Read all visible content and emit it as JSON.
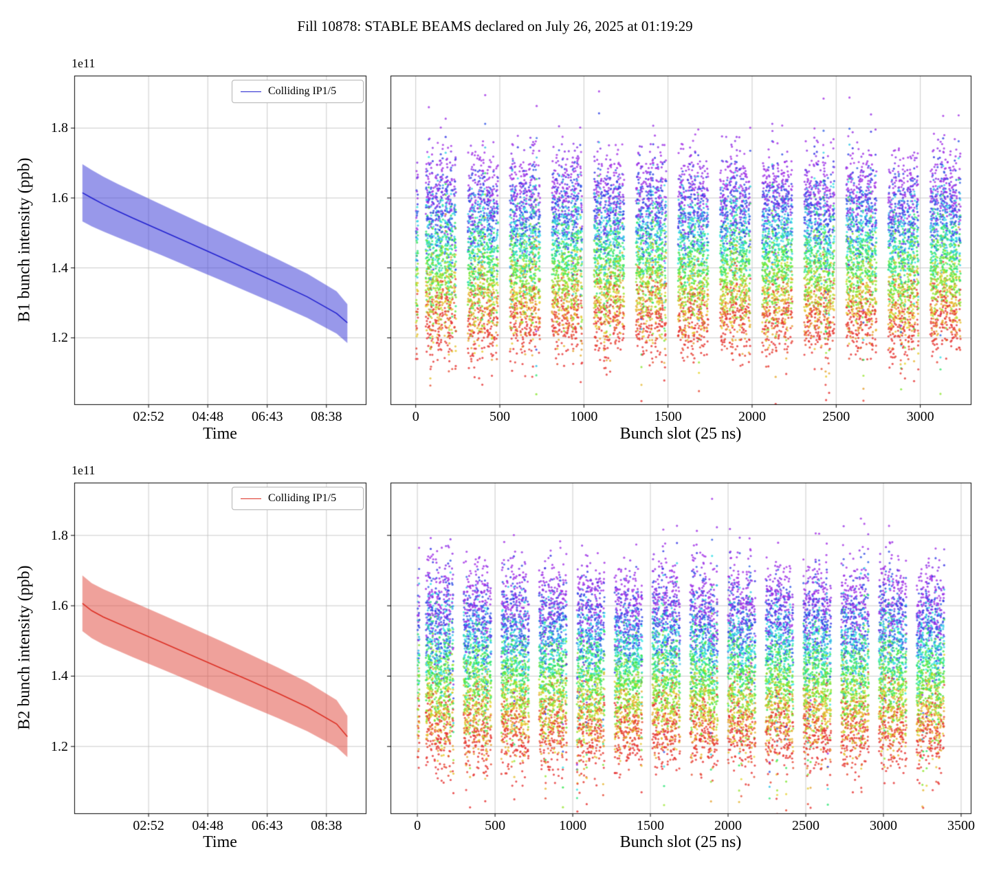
{
  "figure": {
    "title": "Fill 10878: STABLE BEAMS declared on July 26, 2025 at 01:19:29"
  },
  "chart_data": [
    {
      "id": "b1_time",
      "type": "line",
      "xlabel": "Time",
      "ylabel": "B1 bunch intensity (ppb)",
      "y_offset_label": "1e11",
      "legend": {
        "label": "Colliding IP1/5",
        "position": "upper right"
      },
      "line_color": "#2121cf",
      "band_color_rgb": [
        67,
        67,
        216
      ],
      "band_alpha": 0.55,
      "grid": true,
      "xlim": [
        0,
        1
      ],
      "ylim": [
        1.01,
        1.95
      ],
      "xticks": [
        {
          "v": 0.255,
          "label": "02:52"
        },
        {
          "v": 0.458,
          "label": "04:48"
        },
        {
          "v": 0.662,
          "label": "06:43"
        },
        {
          "v": 0.865,
          "label": "08:38"
        }
      ],
      "yticks": [
        {
          "v": 1.2,
          "label": "1.2"
        },
        {
          "v": 1.4,
          "label": "1.4"
        },
        {
          "v": 1.6,
          "label": "1.6"
        },
        {
          "v": 1.8,
          "label": "1.8"
        }
      ],
      "show_ytick_labels": true,
      "series": {
        "x": [
          0.028,
          0.06,
          0.1,
          0.15,
          0.2,
          0.3,
          0.4,
          0.5,
          0.6,
          0.7,
          0.8,
          0.9,
          0.937
        ],
        "y": [
          1.615,
          1.6,
          1.582,
          1.562,
          1.543,
          1.506,
          1.469,
          1.432,
          1.394,
          1.356,
          1.317,
          1.27,
          1.243
        ],
        "hi": [
          1.697,
          1.68,
          1.661,
          1.64,
          1.62,
          1.581,
          1.542,
          1.503,
          1.464,
          1.424,
          1.383,
          1.333,
          1.296
        ],
        "lo": [
          1.533,
          1.519,
          1.504,
          1.487,
          1.47,
          1.436,
          1.401,
          1.366,
          1.33,
          1.294,
          1.257,
          1.212,
          1.185
        ]
      }
    },
    {
      "id": "b1_scatter",
      "type": "scatter",
      "xlabel": "Bunch slot (25 ns)",
      "ylabel": "",
      "grid": true,
      "xlim": [
        -150,
        3300
      ],
      "ylim": [
        1.01,
        1.95
      ],
      "xticks": [
        {
          "v": 0,
          "label": "0"
        },
        {
          "v": 500,
          "label": "500"
        },
        {
          "v": 1000,
          "label": "1000"
        },
        {
          "v": 1500,
          "label": "1500"
        },
        {
          "v": 2000,
          "label": "2000"
        },
        {
          "v": 2500,
          "label": "2500"
        },
        {
          "v": 3000,
          "label": "3000"
        }
      ],
      "yticks": [
        {
          "v": 1.2,
          "label": "1.2"
        },
        {
          "v": 1.4,
          "label": "1.4"
        },
        {
          "v": 1.6,
          "label": "1.6"
        },
        {
          "v": 1.8,
          "label": "1.8"
        }
      ],
      "show_ytick_labels": false,
      "colormap": "rainbow by time: purple=early/high intensity, red=late/low intensity",
      "marker_radius_px": 1.6,
      "marker_alpha": 0.8,
      "gen": {
        "seed": 20257,
        "initial_cluster": {
          "first_slot": 2,
          "count": 12
        },
        "trains": {
          "count": 13,
          "first_slot": 60,
          "length": 180,
          "pitch": 250,
          "on": 48,
          "off": 8
        },
        "intensity": {
          "start_mean": 1.62,
          "start_std": 0.068,
          "decay_ratio_mean": 0.768,
          "decay_ratio_std": 0.018,
          "time_samples": 7,
          "y_noise": 0.011,
          "high_outlier_prob": 0.006,
          "high_outlier_mean": 1.8,
          "high_outlier_std": 0.05,
          "low_outlier_prob": 0.012,
          "low_outlier_mean": 1.4,
          "low_outlier_std": 0.1
        }
      }
    },
    {
      "id": "b2_time",
      "type": "line",
      "xlabel": "Time",
      "ylabel": "B2 bunch intensity (ppb)",
      "y_offset_label": "1e11",
      "legend": {
        "label": "Colliding IP1/5",
        "position": "upper right"
      },
      "line_color": "#dc2f23",
      "band_color_rgb": [
        224,
        68,
        56
      ],
      "band_alpha": 0.5,
      "grid": true,
      "xlim": [
        0,
        1
      ],
      "ylim": [
        1.01,
        1.95
      ],
      "xticks": [
        {
          "v": 0.255,
          "label": "02:52"
        },
        {
          "v": 0.458,
          "label": "04:48"
        },
        {
          "v": 0.662,
          "label": "06:43"
        },
        {
          "v": 0.865,
          "label": "08:38"
        }
      ],
      "yticks": [
        {
          "v": 1.2,
          "label": "1.2"
        },
        {
          "v": 1.4,
          "label": "1.4"
        },
        {
          "v": 1.6,
          "label": "1.6"
        },
        {
          "v": 1.8,
          "label": "1.8"
        }
      ],
      "show_ytick_labels": true,
      "series": {
        "x": [
          0.028,
          0.06,
          0.1,
          0.15,
          0.2,
          0.3,
          0.4,
          0.5,
          0.6,
          0.7,
          0.8,
          0.9,
          0.937
        ],
        "y": [
          1.607,
          1.586,
          1.568,
          1.55,
          1.532,
          1.496,
          1.46,
          1.424,
          1.388,
          1.351,
          1.312,
          1.264,
          1.228
        ],
        "hi": [
          1.686,
          1.664,
          1.647,
          1.629,
          1.611,
          1.575,
          1.538,
          1.501,
          1.463,
          1.424,
          1.383,
          1.332,
          1.287
        ],
        "lo": [
          1.528,
          1.508,
          1.49,
          1.472,
          1.454,
          1.42,
          1.385,
          1.35,
          1.315,
          1.28,
          1.243,
          1.198,
          1.17
        ]
      }
    },
    {
      "id": "b2_scatter",
      "type": "scatter",
      "xlabel": "Bunch slot (25 ns)",
      "ylabel": "",
      "grid": true,
      "xlim": [
        -173,
        3562
      ],
      "ylim": [
        1.01,
        1.95
      ],
      "xticks": [
        {
          "v": 0,
          "label": "0"
        },
        {
          "v": 500,
          "label": "500"
        },
        {
          "v": 1000,
          "label": "1000"
        },
        {
          "v": 1500,
          "label": "1500"
        },
        {
          "v": 2000,
          "label": "2000"
        },
        {
          "v": 2500,
          "label": "2500"
        },
        {
          "v": 3000,
          "label": "3000"
        },
        {
          "v": 3500,
          "label": "3500"
        }
      ],
      "yticks": [
        {
          "v": 1.2,
          "label": "1.2"
        },
        {
          "v": 1.4,
          "label": "1.4"
        },
        {
          "v": 1.6,
          "label": "1.6"
        },
        {
          "v": 1.8,
          "label": "1.8"
        }
      ],
      "show_ytick_labels": false,
      "colormap": "rainbow by time: purple=early/high intensity, red=late/low intensity",
      "marker_radius_px": 1.6,
      "marker_alpha": 0.8,
      "gen": {
        "seed": 11929,
        "initial_cluster": {
          "first_slot": 2,
          "count": 12
        },
        "trains": {
          "count": 14,
          "first_slot": 55,
          "length": 178,
          "pitch": 243,
          "on": 48,
          "off": 8
        },
        "intensity": {
          "start_mean": 1.615,
          "start_std": 0.068,
          "decay_ratio_mean": 0.765,
          "decay_ratio_std": 0.018,
          "time_samples": 7,
          "y_noise": 0.011,
          "high_outlier_prob": 0.006,
          "high_outlier_mean": 1.8,
          "high_outlier_std": 0.05,
          "low_outlier_prob": 0.014,
          "low_outlier_mean": 1.38,
          "low_outlier_std": 0.11
        }
      }
    }
  ]
}
